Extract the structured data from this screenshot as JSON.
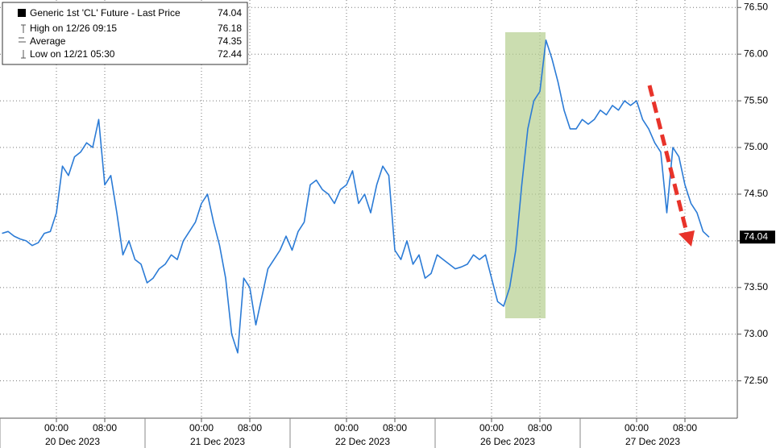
{
  "chart_data": {
    "type": "line",
    "series": [
      {
        "name": "Generic 1st 'CL' Future - Last Price",
        "color": "#2b7bd6",
        "values": [
          74.08,
          74.1,
          74.05,
          74.02,
          74.0,
          73.95,
          73.98,
          74.08,
          74.1,
          74.3,
          74.8,
          74.7,
          74.9,
          74.95,
          75.05,
          75.0,
          75.3,
          74.6,
          74.7,
          74.3,
          73.85,
          74.0,
          73.8,
          73.75,
          73.55,
          73.6,
          73.7,
          73.75,
          73.85,
          73.8,
          74.0,
          74.1,
          74.2,
          74.4,
          74.5,
          74.2,
          73.95,
          73.6,
          73.0,
          72.8,
          73.6,
          73.5,
          73.1,
          73.4,
          73.7,
          73.8,
          73.9,
          74.05,
          73.9,
          74.1,
          74.2,
          74.6,
          74.65,
          74.55,
          74.5,
          74.4,
          74.55,
          74.6,
          74.75,
          74.4,
          74.5,
          74.3,
          74.6,
          74.8,
          74.7,
          73.9,
          73.8,
          74.0,
          73.75,
          73.85,
          73.6,
          73.65,
          73.85,
          73.8,
          73.75,
          73.7,
          73.72,
          73.75,
          73.85,
          73.8,
          73.85,
          73.6,
          73.35,
          73.3,
          73.5,
          73.9,
          74.6,
          75.2,
          75.5,
          75.6,
          76.15,
          75.95,
          75.7,
          75.4,
          75.2,
          75.2,
          75.3,
          75.25,
          75.3,
          75.4,
          75.35,
          75.45,
          75.4,
          75.5,
          75.45,
          75.5,
          75.3,
          75.2,
          75.05,
          74.95,
          74.3,
          75.0,
          74.9,
          74.6,
          74.4,
          74.3,
          74.1,
          74.04
        ]
      }
    ],
    "categories": [
      null,
      null,
      null,
      null,
      null,
      null,
      null,
      null,
      null,
      "00:00",
      null,
      null,
      null,
      null,
      null,
      null,
      null,
      "08:00",
      null,
      null,
      null,
      null,
      null,
      null,
      null,
      null,
      null,
      null,
      null,
      null,
      null,
      null,
      null,
      "00:00",
      null,
      null,
      null,
      null,
      null,
      null,
      null,
      "08:00",
      null,
      null,
      null,
      null,
      null,
      null,
      null,
      null,
      null,
      null,
      null,
      null,
      null,
      null,
      null,
      "00:00",
      null,
      null,
      null,
      null,
      null,
      null,
      null,
      "08:00",
      null,
      null,
      null,
      null,
      null,
      null,
      null,
      null,
      null,
      null,
      null,
      null,
      null,
      null,
      null,
      "00:00",
      null,
      null,
      null,
      null,
      null,
      null,
      null,
      "08:00",
      null,
      null,
      null,
      null,
      null,
      null,
      null,
      null,
      null,
      null,
      null,
      null,
      null,
      null,
      null,
      "00:00",
      null,
      null,
      null,
      null,
      null,
      null,
      null,
      "08:00",
      null,
      null,
      null,
      null
    ],
    "dates": [
      "20 Dec 2023",
      "21 Dec 2023",
      "22 Dec 2023",
      "26 Dec 2023",
      "27 Dec 2023"
    ],
    "last_price": 74.04,
    "stats": [
      {
        "label": "High on 12/26 09:15",
        "value": 76.18
      },
      {
        "label": "Average",
        "value": 74.35
      },
      {
        "label": "Low on 12/21 05:30",
        "value": 72.44
      }
    ],
    "ylim": [
      72.1,
      76.58
    ],
    "yticks": [
      {
        "value": 72.5,
        "label": "72.50"
      },
      {
        "value": 73,
        "label": "73.00"
      },
      {
        "value": 73.5,
        "label": "73.50"
      },
      {
        "value": 74,
        "label": "74.00"
      },
      {
        "value": 74.5,
        "label": "74.50"
      },
      {
        "value": 75,
        "label": "75.00"
      },
      {
        "value": 75.5,
        "label": "75.50"
      },
      {
        "value": 76,
        "label": "76.00"
      },
      {
        "value": 76.5,
        "label": "76.50"
      }
    ],
    "grid": true
  }
}
